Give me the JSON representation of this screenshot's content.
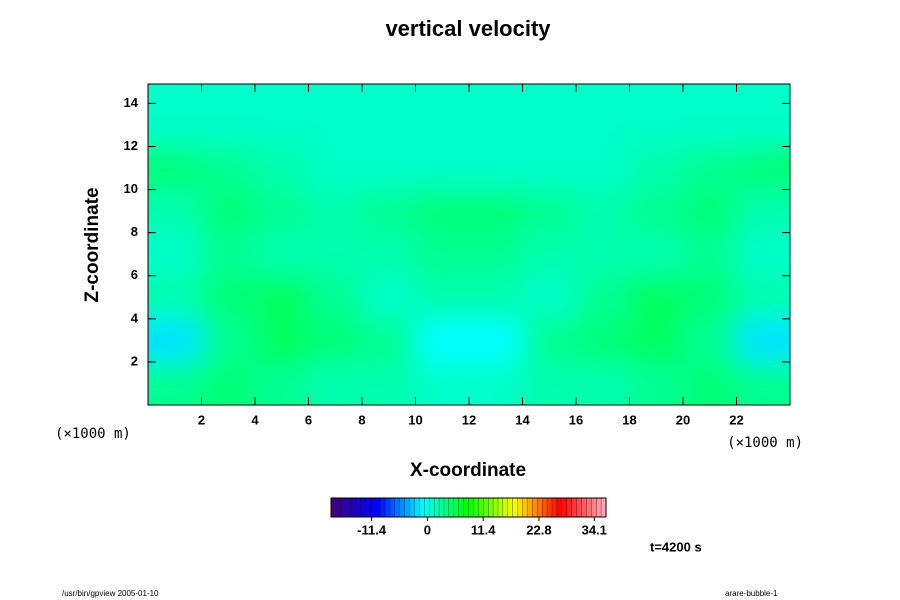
{
  "chart_data": {
    "type": "heatmap",
    "title": "vertical velocity",
    "xlabel": "X-coordinate",
    "ylabel": "Z-coordinate",
    "xunit_left": "(×1000 m)",
    "xunit_right": "(×1000 m)",
    "x": [
      1,
      3,
      5,
      7,
      9,
      11,
      13,
      15,
      17,
      19,
      21,
      23
    ],
    "y": [
      1,
      3,
      5,
      7,
      9,
      11,
      13
    ],
    "z": [
      [
        3,
        4,
        3,
        2,
        2,
        1,
        1,
        2,
        2,
        3,
        4,
        3
      ],
      [
        -2,
        3,
        5,
        4,
        3,
        -1,
        -1,
        3,
        4,
        5,
        3,
        -2
      ],
      [
        2,
        4,
        5,
        3,
        1,
        2,
        2,
        1,
        3,
        5,
        4,
        2
      ],
      [
        1,
        3,
        2,
        2,
        2,
        3,
        3,
        2,
        2,
        2,
        3,
        1
      ],
      [
        2,
        4,
        3,
        2,
        3,
        4,
        4,
        3,
        2,
        3,
        4,
        2
      ],
      [
        4,
        3,
        2,
        1,
        1,
        1,
        1,
        1,
        1,
        2,
        3,
        4
      ],
      [
        1,
        1,
        1,
        1,
        1,
        1,
        1,
        1,
        1,
        1,
        1,
        1
      ]
    ],
    "xlim": [
      0,
      24
    ],
    "ylim": [
      0,
      14.9
    ],
    "xticks": [
      2,
      4,
      6,
      8,
      10,
      12,
      14,
      16,
      18,
      20,
      22
    ],
    "yticks": [
      2,
      4,
      6,
      8,
      10,
      12,
      14
    ],
    "clim": [
      -19.7,
      36.5
    ],
    "cticks": [
      -11.4,
      0,
      11.4,
      22.8,
      34.1
    ],
    "colormap": [
      "#400080",
      "#0000ff",
      "#00ffff",
      "#00ff00",
      "#ffff00",
      "#ff0000",
      "#ffb0c0"
    ],
    "time_label": "t=4200 s",
    "footer_left": "/usr/bin/gpview 2005-01-10",
    "footer_right": "arare-bubble-1"
  }
}
